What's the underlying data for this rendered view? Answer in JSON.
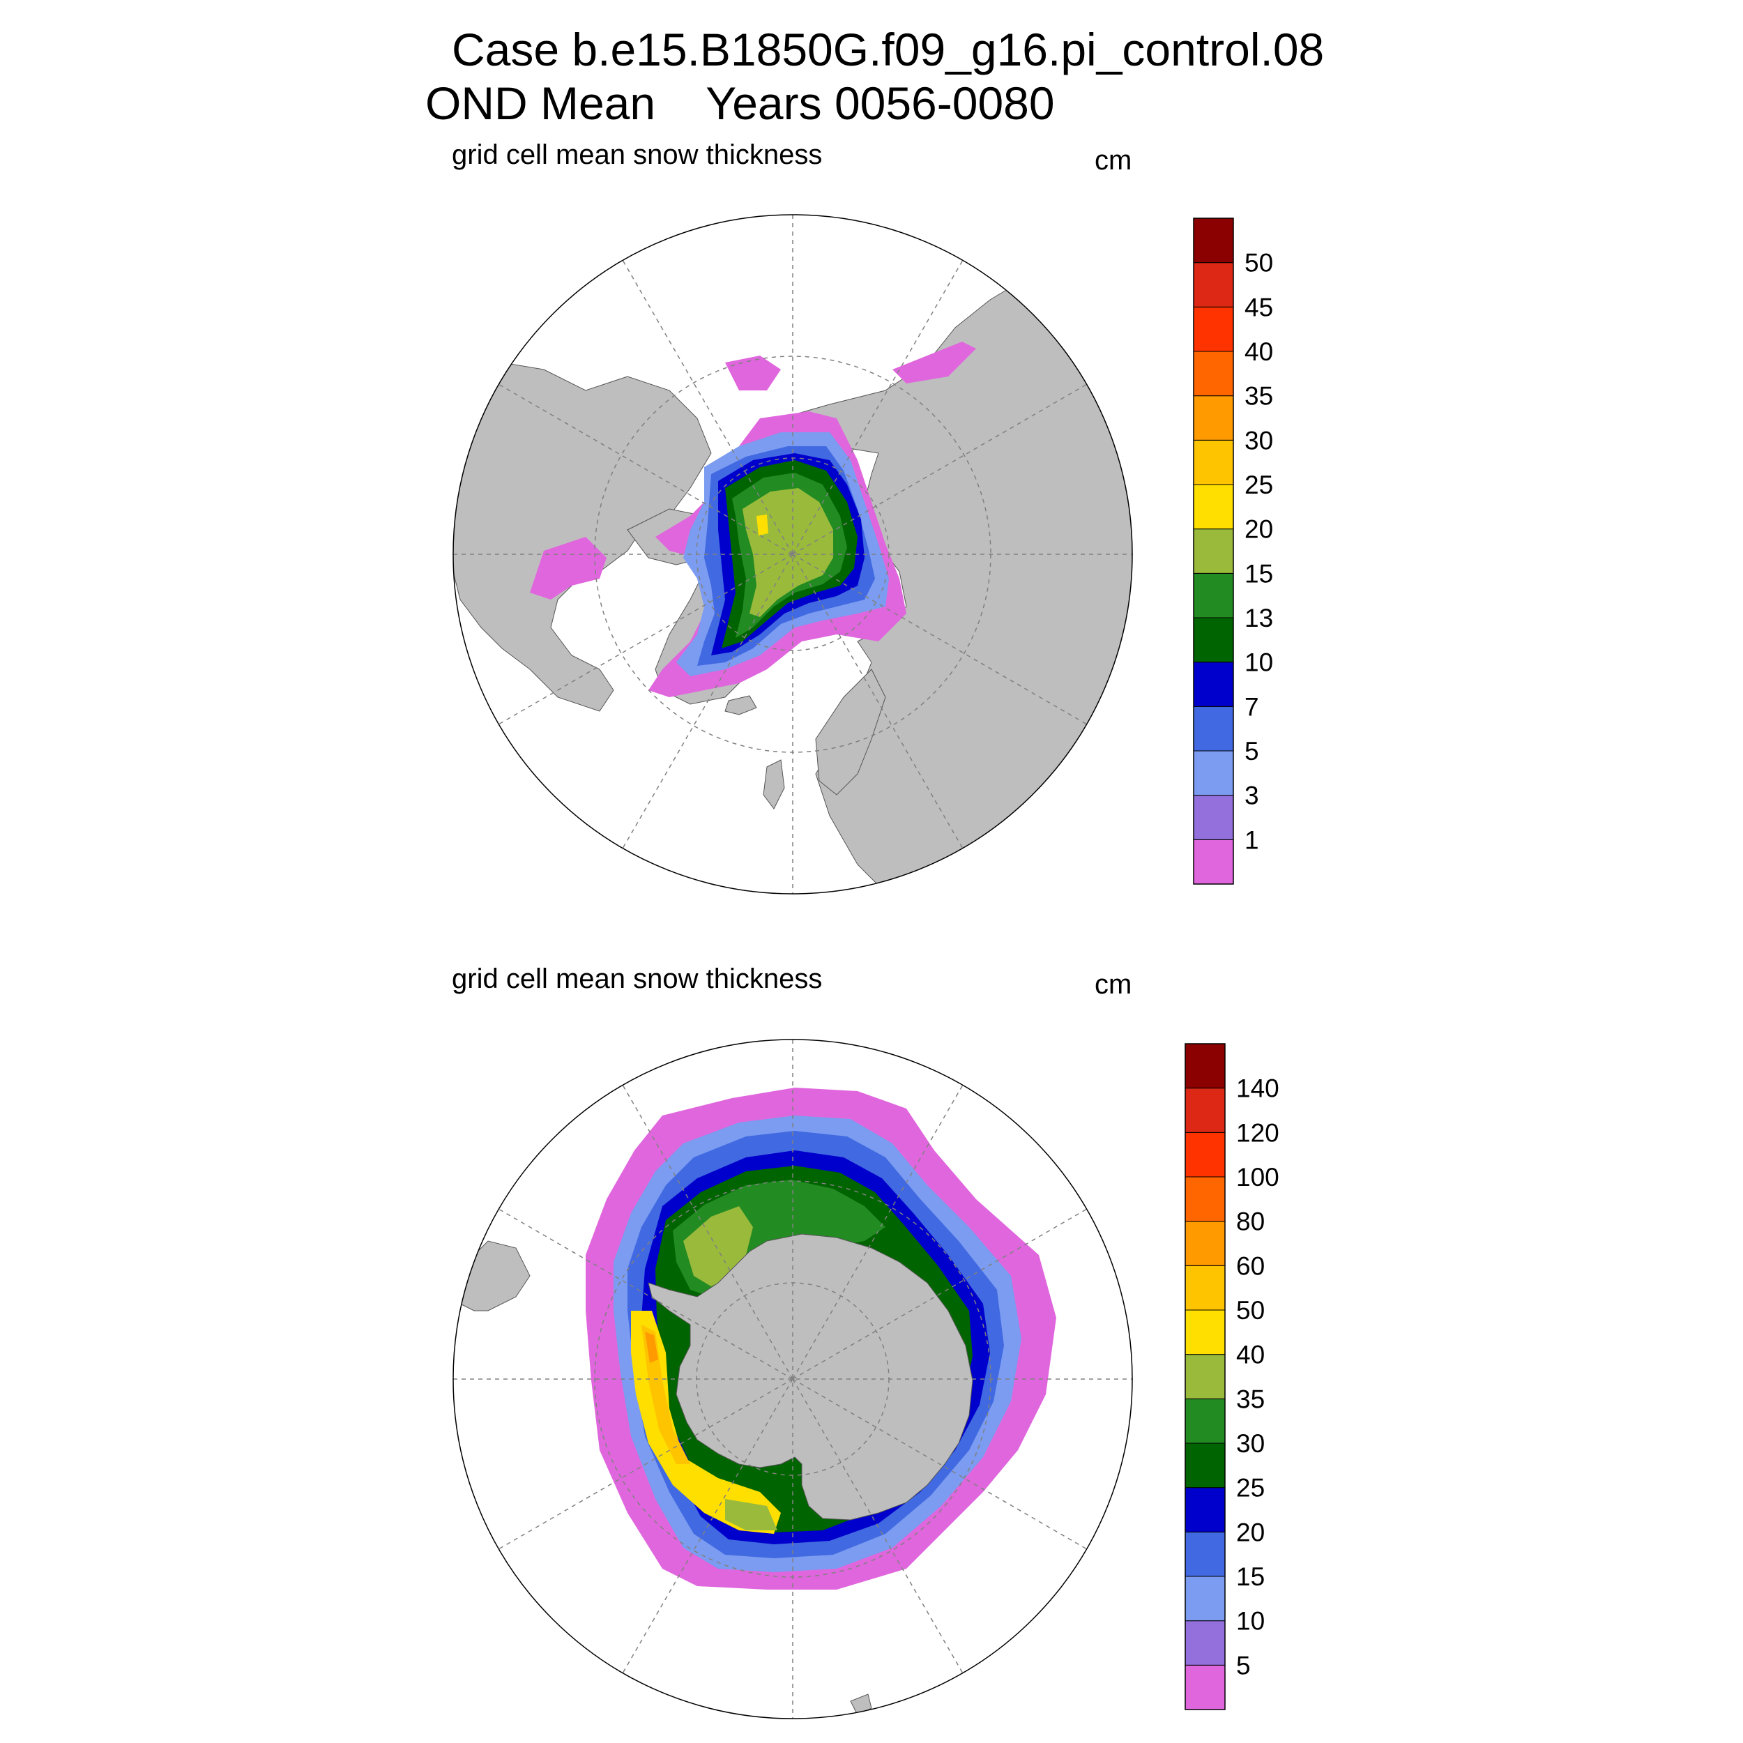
{
  "title": {
    "line1": "Case b.e15.B1850G.f09_g16.pi_control.08",
    "line2": "OND Mean    Years 0056-0080"
  },
  "panels": [
    {
      "id": "north",
      "title": "grid cell mean snow thickness",
      "units": "cm",
      "colorbar": {
        "labels": [
          "1",
          "3",
          "5",
          "7",
          "10",
          "13",
          "15",
          "20",
          "25",
          "30",
          "35",
          "40",
          "45",
          "50"
        ],
        "colors": [
          "#e066dd",
          "#9370db",
          "#7b9cf0",
          "#4169e1",
          "#0000cd",
          "#006400",
          "#228b22",
          "#9aba3c",
          "#ffdf00",
          "#ffc400",
          "#ff9a00",
          "#ff6600",
          "#ff3300",
          "#dc2814",
          "#8b0000"
        ]
      }
    },
    {
      "id": "south",
      "title": "grid cell mean snow thickness",
      "units": "cm",
      "colorbar": {
        "labels": [
          "5",
          "10",
          "15",
          "20",
          "25",
          "30",
          "35",
          "40",
          "50",
          "60",
          "80",
          "100",
          "120",
          "140"
        ],
        "colors": [
          "#e066dd",
          "#9370db",
          "#7b9cf0",
          "#4169e1",
          "#0000cd",
          "#006400",
          "#228b22",
          "#9aba3c",
          "#ffdf00",
          "#ffc400",
          "#ff9a00",
          "#ff6600",
          "#ff3300",
          "#dc2814",
          "#8b0000"
        ]
      }
    }
  ],
  "colors": {
    "land": "#bebebe",
    "ocean": "#ffffff",
    "grid": "#808080"
  }
}
